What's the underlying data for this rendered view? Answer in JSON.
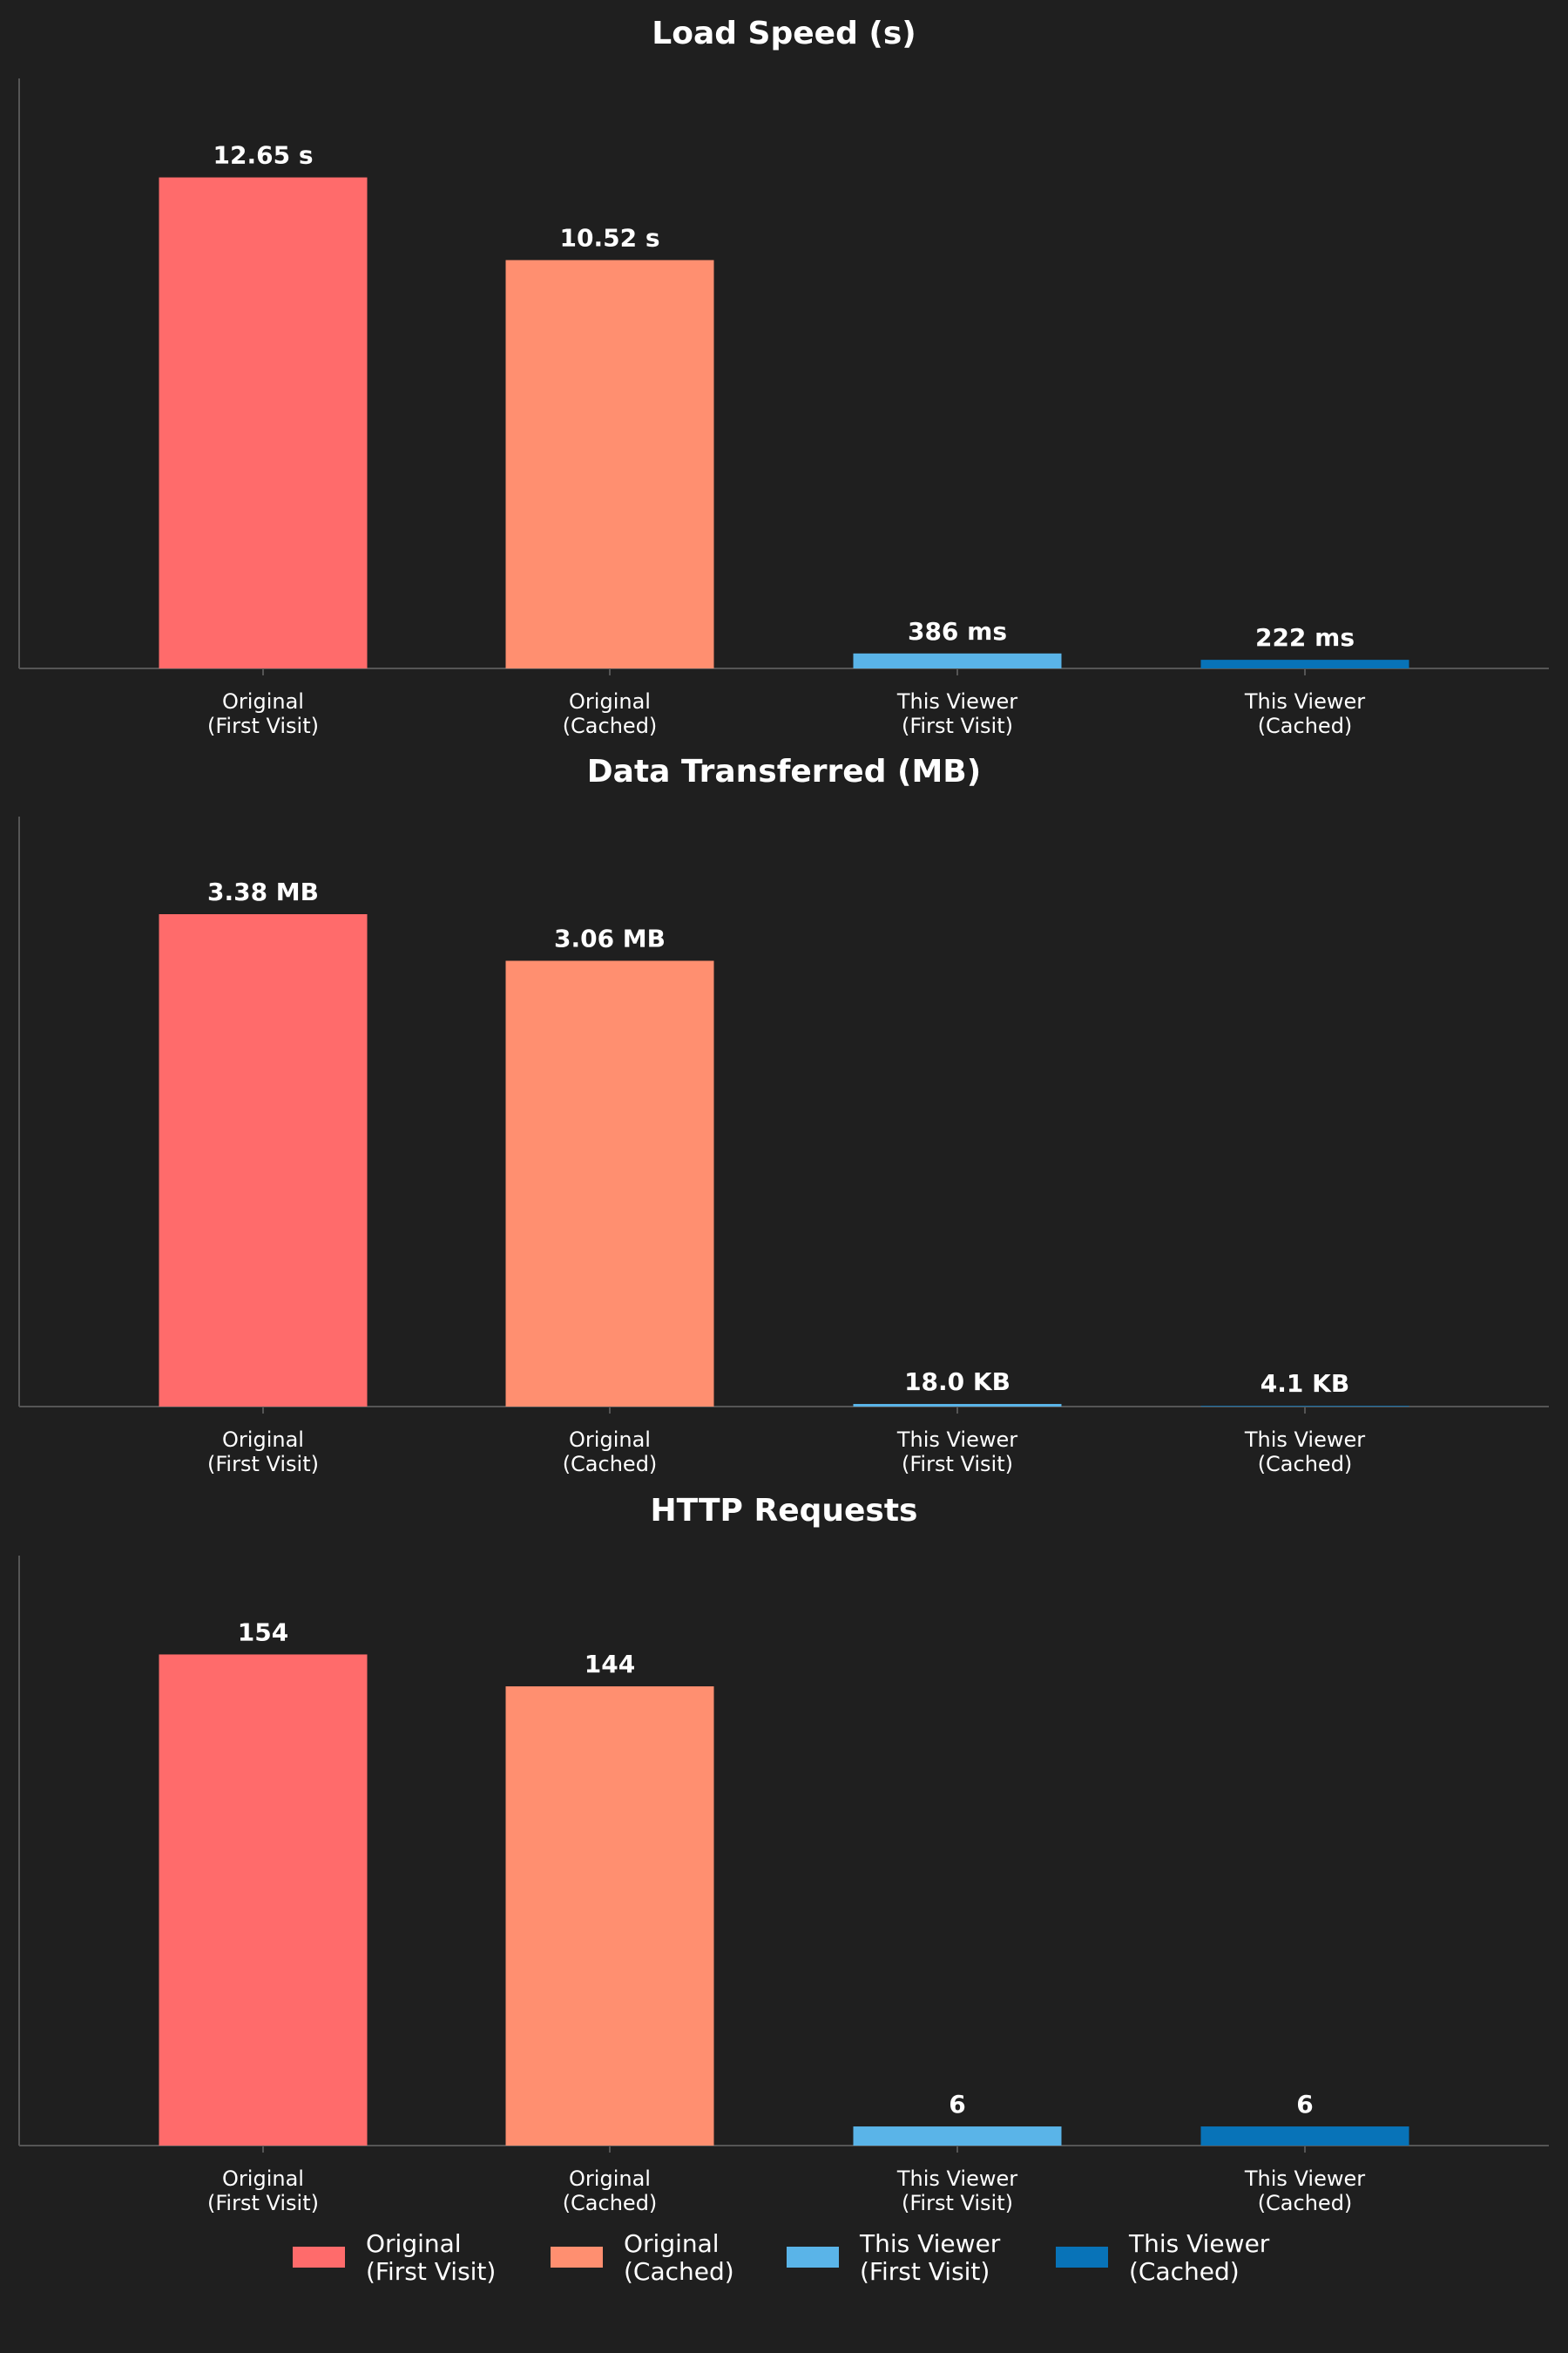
{
  "background": "#1f1f1f",
  "text_color": "#ffffff",
  "axis_color": "#555555",
  "categories": [
    "Original\n(First Visit)",
    "Original\n(Cached)",
    "This Viewer\n(First Visit)",
    "This Viewer\n(Cached)"
  ],
  "colors": [
    "#ff6b6b",
    "#ff8f70",
    "#5ab4e8",
    "#0873b8"
  ],
  "chart_data": [
    {
      "type": "bar",
      "title": "Load Speed (s)",
      "categories": [
        "Original\n(First Visit)",
        "Original\n(Cached)",
        "This Viewer\n(First Visit)",
        "This Viewer\n(Cached)"
      ],
      "values": [
        12.65,
        10.52,
        0.386,
        0.222
      ],
      "value_labels": [
        "12.65 s",
        "10.52 s",
        "386 ms",
        "222 ms"
      ],
      "xlabel": "",
      "ylabel": "",
      "ylim": [
        0,
        15.2
      ]
    },
    {
      "type": "bar",
      "title": "Data Transferred (MB)",
      "categories": [
        "Original\n(First Visit)",
        "Original\n(Cached)",
        "This Viewer\n(First Visit)",
        "This Viewer\n(Cached)"
      ],
      "values": [
        3.38,
        3.06,
        0.018,
        0.0041
      ],
      "value_labels": [
        "3.38 MB",
        "3.06 MB",
        "18.0 KB",
        "4.1 KB"
      ],
      "xlabel": "",
      "ylabel": "",
      "ylim": [
        0,
        4.05
      ]
    },
    {
      "type": "bar",
      "title": "HTTP Requests",
      "categories": [
        "Original\n(First Visit)",
        "Original\n(Cached)",
        "This Viewer\n(First Visit)",
        "This Viewer\n(Cached)"
      ],
      "values": [
        154,
        144,
        6,
        6
      ],
      "value_labels": [
        "154",
        "144",
        "6",
        "6"
      ],
      "xlabel": "",
      "ylabel": "",
      "ylim": [
        0,
        185
      ]
    }
  ],
  "legend": {
    "placement": "bottom-center",
    "entries": [
      {
        "label": "Original\n(First Visit)",
        "color": "#ff6b6b"
      },
      {
        "label": "Original\n(Cached)",
        "color": "#ff8f70"
      },
      {
        "label": "This Viewer\n(First Visit)",
        "color": "#5ab4e8"
      },
      {
        "label": "This Viewer\n(Cached)",
        "color": "#0873b8"
      }
    ]
  }
}
